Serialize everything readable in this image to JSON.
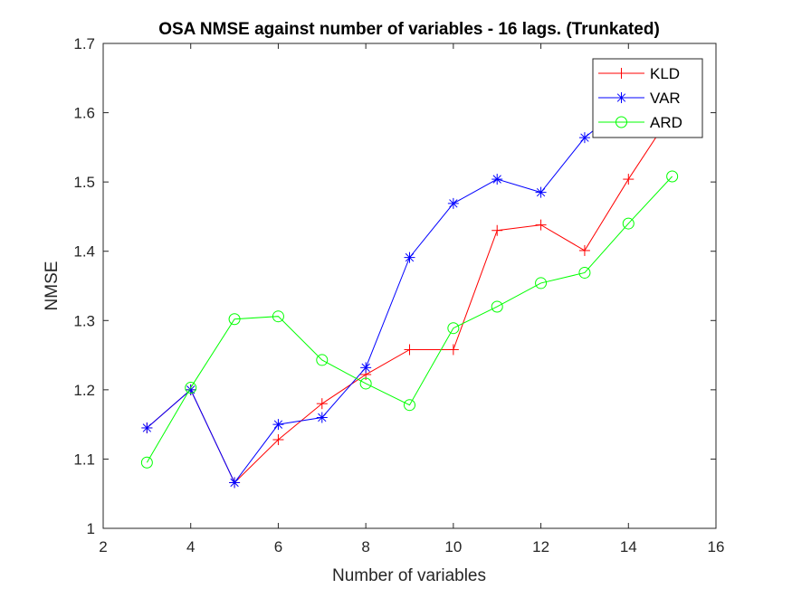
{
  "chart_data": {
    "type": "line",
    "title": "OSA NMSE against number of variables - 16 lags. (Trunkated)",
    "xlabel": "Number of variables",
    "ylabel": "NMSE",
    "xlim": [
      2,
      16
    ],
    "ylim": [
      1,
      1.7
    ],
    "xticks": [
      2,
      4,
      6,
      8,
      10,
      12,
      14,
      16
    ],
    "yticks": [
      1,
      1.1,
      1.2,
      1.3,
      1.4,
      1.5,
      1.6,
      1.7
    ],
    "grid": false,
    "legend_position": "top-right",
    "x": [
      3,
      4,
      5,
      6,
      7,
      8,
      9,
      10,
      11,
      12,
      13,
      14,
      15
    ],
    "series": [
      {
        "name": "KLD",
        "color": "#ff0000",
        "marker": "plus",
        "values": [
          1.145,
          1.2,
          1.066,
          1.128,
          1.18,
          1.222,
          1.258,
          1.258,
          1.43,
          1.438,
          1.401,
          1.504,
          1.6
        ]
      },
      {
        "name": "VAR",
        "color": "#0000ff",
        "marker": "asterisk",
        "values": [
          1.145,
          1.2,
          1.066,
          1.15,
          1.16,
          1.232,
          1.391,
          1.469,
          1.504,
          1.485,
          1.564,
          1.615,
          1.64
        ]
      },
      {
        "name": "ARD",
        "color": "#00ff00",
        "marker": "circle",
        "values": [
          1.095,
          1.203,
          1.302,
          1.306,
          1.243,
          1.209,
          1.178,
          1.289,
          1.32,
          1.354,
          1.369,
          1.44,
          1.508
        ]
      }
    ]
  }
}
